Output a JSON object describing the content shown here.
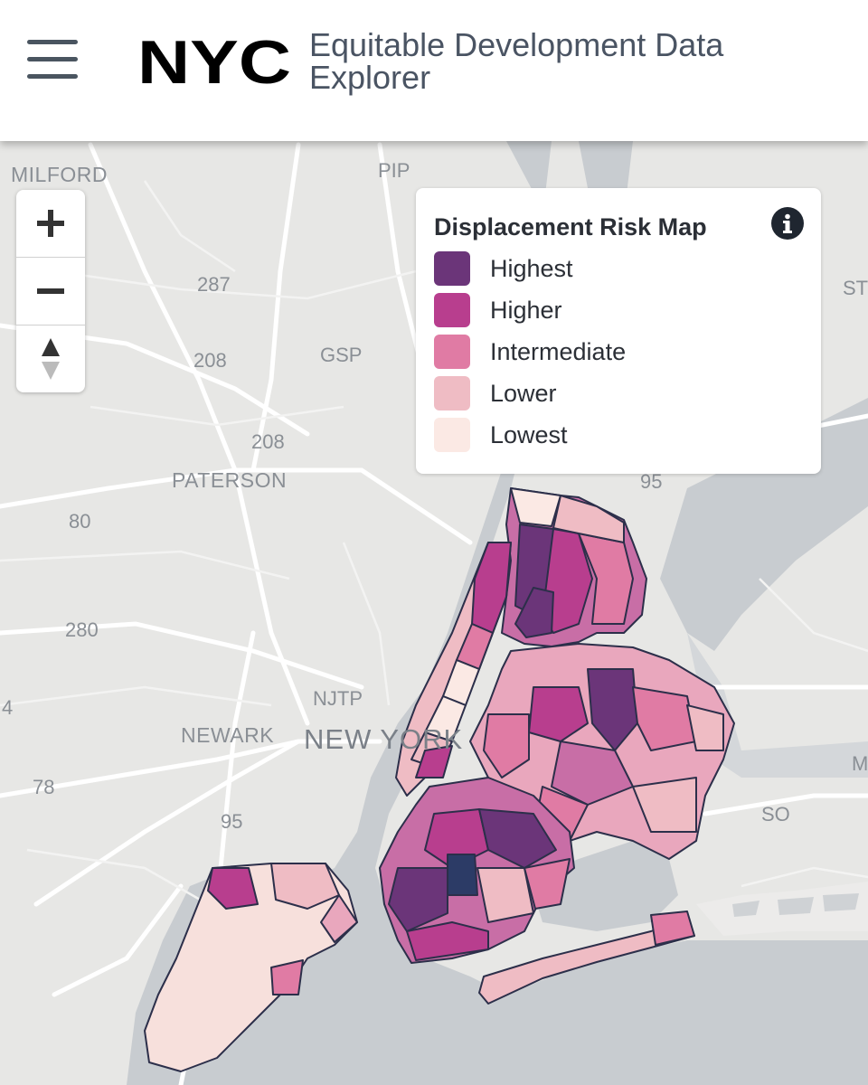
{
  "header": {
    "menu_icon": "hamburger-menu-icon",
    "logo_text": "NYC",
    "title": "Equitable Development Data Explorer"
  },
  "map": {
    "place_labels": [
      "MILFORD",
      "PATERSON",
      "NEWARK",
      "NEW YORK"
    ],
    "road_labels": [
      "PIP",
      "287",
      "208",
      "GSP",
      "208",
      "80",
      "280",
      "NJTP",
      "78",
      "95",
      "95",
      "SO",
      "ST",
      "M",
      "4"
    ]
  },
  "zoom": {
    "zoom_in_icon": "plus-icon",
    "zoom_out_icon": "minus-icon",
    "reset_icon": "compass-arrow-icon"
  },
  "legend": {
    "title": "Displacement Risk Map",
    "info_icon": "info-icon",
    "items": [
      {
        "label": "Highest",
        "color": "#6b3579"
      },
      {
        "label": "Higher",
        "color": "#b83e8e"
      },
      {
        "label": "Intermediate",
        "color": "#e07ba4"
      },
      {
        "label": "Lower",
        "color": "#efbcc4"
      },
      {
        "label": "Lowest",
        "color": "#fbe9e4"
      }
    ]
  }
}
